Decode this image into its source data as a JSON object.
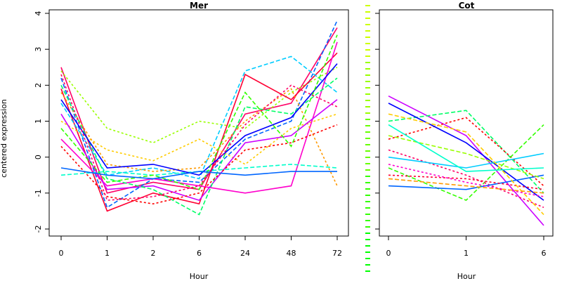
{
  "chart_data": [
    {
      "type": "line",
      "title": "Mer",
      "xlabel": "Hour",
      "ylabel": "centered expression",
      "categories": [
        "0",
        "1",
        "2",
        "6",
        "24",
        "48",
        "72"
      ],
      "ylim": [
        -2.2,
        4.1
      ],
      "yticks": [
        -2,
        -1,
        0,
        1,
        2,
        3,
        4
      ],
      "series_palette": [
        "#ff0066",
        "#ff0033",
        "#ff00cc",
        "#cc00ff",
        "#0000ff",
        "#0066ff",
        "#00ccff",
        "#00ffcc",
        "#00ff66",
        "#33ff00",
        "#99ff00",
        "#ffcc00",
        "#ff9900",
        "#ff0000"
      ],
      "series_note": "hundreds of overlapping gene-expression profiles; representative profiles listed",
      "series": [
        {
          "values": [
            2.5,
            -1.0,
            -0.7,
            -0.9,
            1.2,
            1.5,
            3.6
          ]
        },
        {
          "values": [
            2.2,
            -1.4,
            -0.6,
            -0.7,
            0.5,
            1.0,
            3.8
          ]
        },
        {
          "values": [
            2.4,
            0.8,
            0.4,
            1.0,
            0.8,
            1.8,
            2.5
          ]
        },
        {
          "values": [
            1.9,
            -1.5,
            -1.0,
            -1.3,
            2.3,
            1.6,
            2.9
          ]
        },
        {
          "values": [
            1.5,
            -0.5,
            -0.3,
            -0.6,
            2.4,
            2.8,
            1.8
          ]
        },
        {
          "values": [
            1.0,
            0.2,
            -0.1,
            0.5,
            -0.2,
            0.8,
            1.2
          ]
        },
        {
          "values": [
            0.5,
            -0.8,
            -0.6,
            -0.8,
            -1.0,
            -0.8,
            3.2
          ]
        },
        {
          "values": [
            -0.5,
            -0.4,
            -0.5,
            -0.4,
            -0.3,
            -0.2,
            -0.3
          ]
        },
        {
          "values": [
            1.8,
            -0.2,
            -0.4,
            -0.3,
            1.0,
            1.9,
            -0.8
          ]
        },
        {
          "values": [
            1.2,
            -0.9,
            -0.8,
            -1.2,
            0.4,
            0.6,
            1.6
          ]
        },
        {
          "values": [
            2.0,
            -0.6,
            -0.9,
            -1.6,
            1.4,
            1.2,
            2.2
          ]
        },
        {
          "values": [
            0.3,
            -1.1,
            -1.3,
            -1.0,
            0.2,
            0.4,
            0.9
          ]
        },
        {
          "values": [
            1.6,
            -0.3,
            -0.2,
            -0.5,
            0.6,
            1.1,
            2.6
          ]
        },
        {
          "values": [
            0.8,
            -0.7,
            -0.5,
            -0.9,
            1.8,
            0.3,
            3.4
          ]
        },
        {
          "values": [
            2.3,
            -1.2,
            -1.1,
            -0.8,
            0.9,
            2.0,
            1.4
          ]
        },
        {
          "values": [
            -0.3,
            -0.5,
            -0.6,
            -0.4,
            -0.5,
            -0.4,
            -0.4
          ]
        }
      ]
    },
    {
      "type": "line",
      "title": "Cot",
      "xlabel": "Hour",
      "categories": [
        "0",
        "1",
        "6"
      ],
      "ylim": [
        -2.2,
        4.1
      ],
      "series_palette": [
        "#ff0066",
        "#ff0033",
        "#ff00cc",
        "#cc00ff",
        "#0000ff",
        "#0066ff",
        "#00ccff",
        "#00ffcc",
        "#00ff66",
        "#33ff00",
        "#99ff00",
        "#ffcc00",
        "#ff9900",
        "#ff0000"
      ],
      "series_note": "hundreds of overlapping gene-expression profiles; representative profiles listed",
      "series": [
        {
          "values": [
            1.7,
            0.6,
            -1.9
          ]
        },
        {
          "values": [
            1.0,
            1.3,
            -1.0
          ]
        },
        {
          "values": [
            0.5,
            1.1,
            -0.8
          ]
        },
        {
          "values": [
            1.5,
            0.4,
            -1.2
          ]
        },
        {
          "values": [
            -0.3,
            -1.2,
            0.9
          ]
        },
        {
          "values": [
            0.2,
            -0.5,
            -1.4
          ]
        },
        {
          "values": [
            -0.8,
            -0.9,
            -0.5
          ]
        },
        {
          "values": [
            0.6,
            0.1,
            -0.6
          ]
        },
        {
          "values": [
            -0.5,
            -0.6,
            -0.9
          ]
        },
        {
          "values": [
            0.0,
            -0.3,
            0.1
          ]
        },
        {
          "values": [
            1.2,
            0.7,
            -1.6
          ]
        },
        {
          "values": [
            -0.2,
            -0.7,
            -1.1
          ]
        },
        {
          "values": [
            0.9,
            -0.4,
            -0.3
          ]
        },
        {
          "values": [
            -0.6,
            -0.8,
            -1.0
          ]
        }
      ]
    }
  ]
}
